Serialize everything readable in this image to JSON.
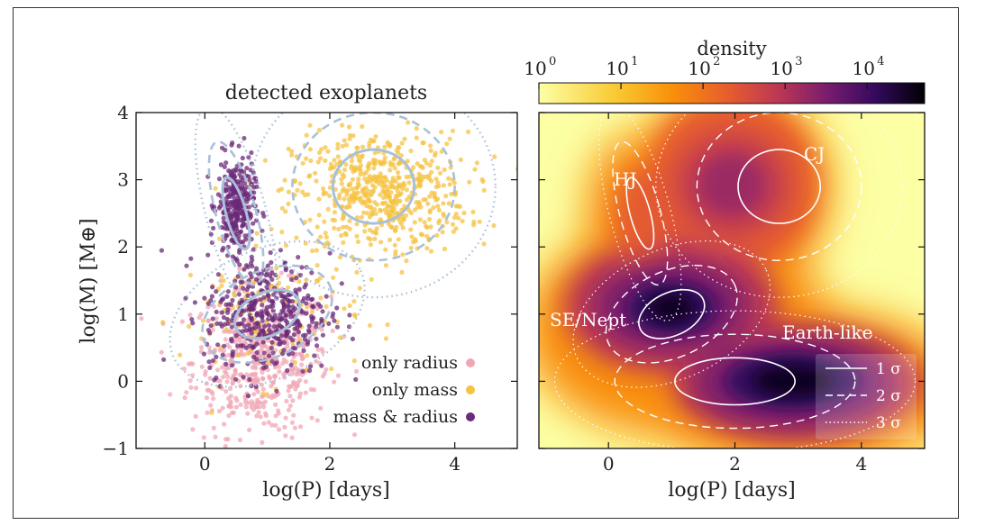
{
  "chart_data": [
    {
      "type": "scatter",
      "title": "detected exoplanets",
      "xlabel": "log(P) [days]",
      "ylabel": "log(M) [M⊕]",
      "xlim": [
        -1.1,
        5.0
      ],
      "ylim": [
        -1.0,
        4.0
      ],
      "xticks": [
        "0",
        "2",
        "4"
      ],
      "yticks": [
        "−1",
        "0",
        "1",
        "2",
        "3",
        "4"
      ],
      "legend_position": "lower-right",
      "series": [
        {
          "name": "only radius",
          "color": "#f0a7b4",
          "clusters": [
            {
              "x_mean": 0.9,
              "y_mean": 0.3,
              "x_sd": 0.55,
              "y_sd": 0.55,
              "count": 520
            }
          ]
        },
        {
          "name": "only mass",
          "color": "#f5c343",
          "clusters": [
            {
              "x_mean": 2.8,
              "y_mean": 2.8,
              "x_sd": 0.7,
              "y_sd": 0.45,
              "count": 600
            },
            {
              "x_mean": 1.0,
              "y_mean": 1.0,
              "x_sd": 0.7,
              "y_sd": 0.5,
              "count": 120
            }
          ]
        },
        {
          "name": "mass & radius",
          "color": "#6b2a7a",
          "clusters": [
            {
              "x_mean": 0.5,
              "y_mean": 2.6,
              "x_sd": 0.15,
              "y_sd": 0.35,
              "count": 300
            },
            {
              "x_mean": 1.0,
              "y_mean": 1.0,
              "x_sd": 0.5,
              "y_sd": 0.45,
              "count": 420
            }
          ]
        }
      ],
      "overlay_ellipses": [
        {
          "cx": 2.7,
          "cy": 2.9,
          "rx": 0.65,
          "ry": 0.55,
          "angle": 0,
          "color": "#a9c0d8"
        },
        {
          "cx": 0.5,
          "cy": 2.5,
          "rx": 0.16,
          "ry": 0.55,
          "angle": 15,
          "color": "#a9c0d8"
        },
        {
          "cx": 1.0,
          "cy": 1.0,
          "rx": 0.55,
          "ry": 0.32,
          "angle": 25,
          "color": "#a9c0d8"
        }
      ]
    },
    {
      "type": "heatmap",
      "xlabel": "log(P) [days]",
      "xlim": [
        -1.1,
        5.0
      ],
      "ylim": [
        -1.0,
        4.0
      ],
      "xticks": [
        "0",
        "2",
        "4"
      ],
      "colorbar": {
        "label": "density",
        "scale": "log",
        "ticks": [
          "10",
          "10",
          "10",
          "10",
          "10"
        ],
        "tick_exponents": [
          "0",
          "1",
          "2",
          "3",
          "4"
        ],
        "colormap": "inferno_r"
      },
      "components": [
        {
          "label": "CJ",
          "cx": 2.7,
          "cy": 2.9,
          "rx": 0.65,
          "ry": 0.55,
          "angle": 0
        },
        {
          "label": "HJ",
          "cx": 0.5,
          "cy": 2.5,
          "rx": 0.16,
          "ry": 0.55,
          "angle": 15
        },
        {
          "label": "SE/Nept",
          "cx": 1.0,
          "cy": 1.0,
          "rx": 0.55,
          "ry": 0.32,
          "angle": 25
        },
        {
          "label": "Earth-like",
          "cx": 2.0,
          "cy": 0.0,
          "rx": 0.95,
          "ry": 0.35,
          "angle": 0
        }
      ],
      "legend_position": "lower-right",
      "legend": [
        {
          "label": "1 σ",
          "style": "solid"
        },
        {
          "label": "2 σ",
          "style": "dashed"
        },
        {
          "label": "3 σ",
          "style": "dotted"
        }
      ]
    }
  ]
}
